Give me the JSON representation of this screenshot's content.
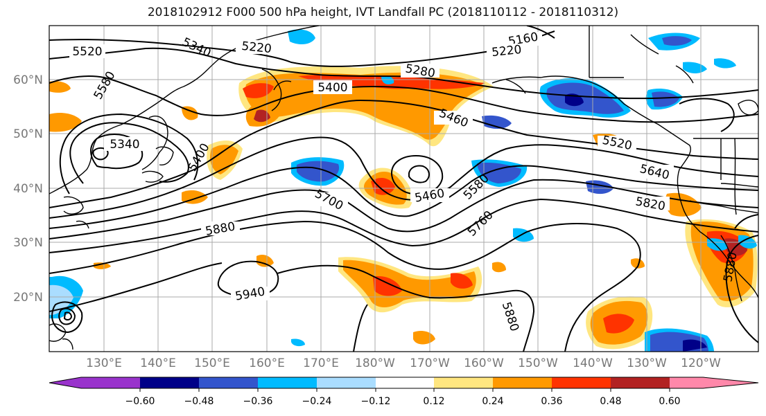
{
  "title": "2018102912 F000 500 hPa height, IVT Landfall PC (2018110112 - 2018110312)",
  "lat_labels": [
    "60°N",
    "50°N",
    "40°N",
    "30°N",
    "20°N"
  ],
  "lon_labels": [
    "130°E",
    "140°E",
    "150°E",
    "160°E",
    "170°E",
    "180°W",
    "170°W",
    "160°W",
    "150°W",
    "140°W",
    "130°W",
    "120°W"
  ],
  "contour_labels": [
    "5520",
    "5340",
    "5220",
    "5160",
    "5220",
    "5580",
    "5280",
    "5400",
    "5340",
    "5460",
    "5400",
    "5520",
    "5640",
    "5700",
    "5460",
    "5580",
    "5820",
    "5760",
    "5880",
    "5940",
    "5880",
    "5880"
  ],
  "colorbar": {
    "ticks": [
      "−0.60",
      "−0.48",
      "−0.36",
      "−0.24",
      "−0.12",
      "0.12",
      "0.24",
      "0.36",
      "0.48",
      "0.60"
    ],
    "colors": [
      "#9933cc",
      "#000088",
      "#3355cc",
      "#00bbff",
      "#aaddff",
      "#ffffff",
      "#ffe680",
      "#ff9900",
      "#ff3300",
      "#b22222",
      "#ff88aa"
    ]
  }
}
